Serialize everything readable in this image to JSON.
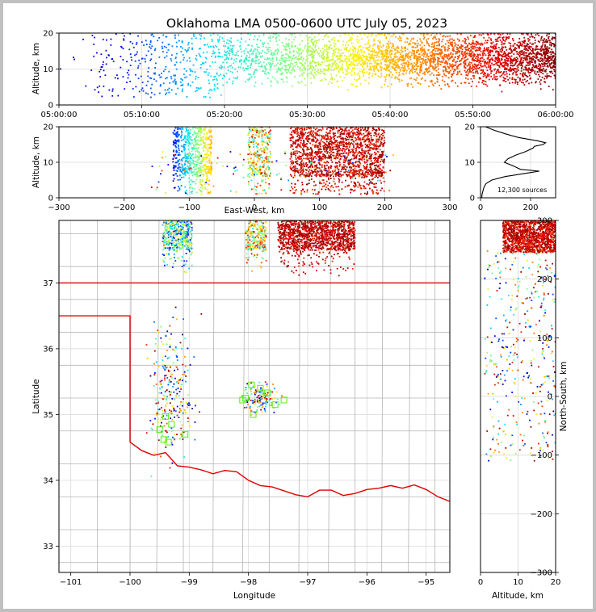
{
  "title": "Oklahoma LMA 0500-0600 UTC July 05, 2023",
  "source_count_label": "12,300 sources",
  "colors": {
    "boundary": "#e00000",
    "counties": "#b4b4b4",
    "stations": "#66ee22",
    "grid": "#d9d9d9"
  },
  "chart_data": [
    {
      "panel": "altitude-vs-time",
      "type": "scatter",
      "color_encoding": "time (blue → cyan → green → yellow → red → dark red)",
      "ylabel": "Altitude, km",
      "ylim": [
        0,
        20
      ],
      "yticks": [
        "0",
        "10",
        "20"
      ],
      "xlim_minutes": [
        0,
        60
      ],
      "xticks": [
        "05:00:00",
        "05:10:00",
        "05:20:00",
        "05:30:00",
        "05:40:00",
        "05:50:00",
        "06:00:00"
      ],
      "grid": true
    },
    {
      "panel": "altitude-vs-east-west",
      "type": "scatter",
      "xlabel": "East-West, km",
      "ylabel": "Altitude, km",
      "xlim": [
        -300,
        300
      ],
      "ylim": [
        0,
        20
      ],
      "xticks": [
        "−300",
        "−200",
        "−100",
        "0",
        "100",
        "200",
        "300"
      ],
      "yticks": [
        "0",
        "10",
        "20"
      ],
      "clusters_km": [
        [
          -125,
          -65
        ],
        [
          -10,
          25
        ],
        [
          55,
          200
        ]
      ],
      "grid": true
    },
    {
      "panel": "altitude-histogram",
      "type": "line",
      "xlim": [
        0,
        300
      ],
      "ylim": [
        0,
        20
      ],
      "xticks": [
        "0",
        "200"
      ],
      "yticks": [
        "0",
        "10",
        "20"
      ],
      "altitude_km": [
        0,
        1,
        2,
        3,
        4,
        5,
        6,
        7,
        7.5,
        8,
        9,
        10,
        11,
        12,
        13,
        14,
        14.5,
        15,
        15.5,
        16,
        17,
        18,
        19,
        20
      ],
      "count": [
        5,
        6,
        10,
        14,
        22,
        45,
        100,
        190,
        235,
        160,
        130,
        95,
        110,
        140,
        180,
        210,
        215,
        250,
        260,
        230,
        150,
        100,
        55,
        20
      ]
    },
    {
      "panel": "plan-view-map",
      "type": "scatter",
      "xlabel": "Longitude",
      "ylabel": "Latitude",
      "xlim": [
        -101.2,
        -94.6
      ],
      "ylim": [
        32.6,
        37.95
      ],
      "xticks": [
        "−101",
        "−100",
        "−99",
        "−98",
        "−97",
        "−96",
        "−95"
      ],
      "yticks": [
        "33",
        "34",
        "35",
        "36",
        "37"
      ],
      "stations": [
        [
          -99.4,
          34.97
        ],
        [
          -99.3,
          34.85
        ],
        [
          -99.5,
          34.77
        ],
        [
          -99.35,
          34.58
        ],
        [
          -99.43,
          34.62
        ],
        [
          -99.07,
          34.7
        ],
        [
          -97.92,
          35.0
        ],
        [
          -98.05,
          35.25
        ],
        [
          -97.8,
          35.4
        ],
        [
          -97.68,
          35.33
        ],
        [
          -97.55,
          35.15
        ],
        [
          -97.4,
          35.22
        ],
        [
          -97.95,
          35.45
        ],
        [
          -98.1,
          35.22
        ]
      ],
      "grid": true
    },
    {
      "panel": "north-south-vs-altitude",
      "type": "scatter",
      "xlabel": "Altitude, km",
      "ylabel": "North-South, km",
      "xlim": [
        0,
        20
      ],
      "ylim": [
        -300,
        300
      ],
      "xticks": [
        "0",
        "10",
        "20"
      ],
      "yticks": [
        "−300",
        "−200",
        "−100",
        "0",
        "100",
        "200",
        "300"
      ],
      "grid": true
    }
  ]
}
